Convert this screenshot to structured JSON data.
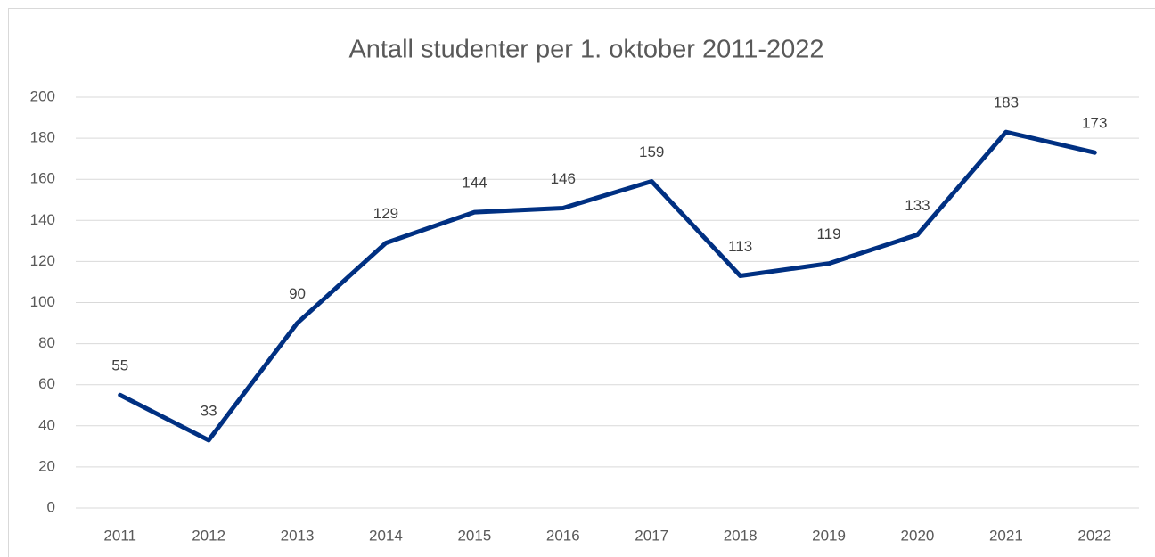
{
  "chart_data": {
    "type": "line",
    "title": "Antall studenter per 1. oktober 2011-2022",
    "categories": [
      "2011",
      "2012",
      "2013",
      "2014",
      "2015",
      "2016",
      "2017",
      "2018",
      "2019",
      "2020",
      "2021",
      "2022"
    ],
    "values": [
      55,
      33,
      90,
      129,
      144,
      146,
      159,
      113,
      119,
      133,
      183,
      173
    ],
    "color": "#003082",
    "ylim": [
      0,
      200
    ],
    "yticks": [
      0,
      20,
      40,
      60,
      80,
      100,
      120,
      140,
      160,
      180,
      200
    ],
    "grid": true
  }
}
